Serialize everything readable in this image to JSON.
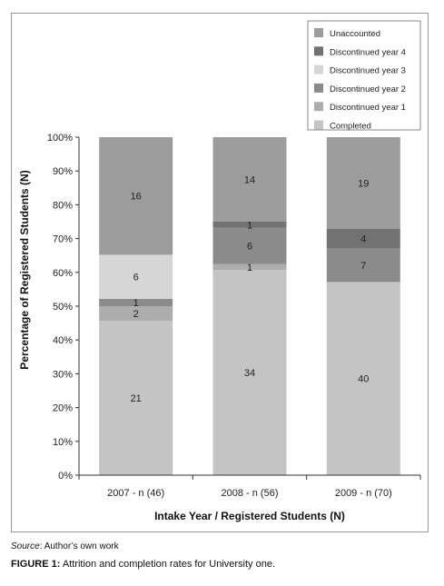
{
  "chart_data": {
    "type": "stacked_bar",
    "categories": [
      "2007 - n (46)",
      "2008 - n (56)",
      "2009 - n (70)"
    ],
    "series": [
      {
        "name": "Completed",
        "color": "#c4c4c4",
        "values": [
          21,
          34,
          40
        ]
      },
      {
        "name": "Discontinued year 1",
        "color": "#adadad",
        "values": [
          2,
          1,
          0
        ]
      },
      {
        "name": "Discontinued year 2",
        "color": "#8b8b8b",
        "values": [
          1,
          6,
          7
        ]
      },
      {
        "name": "Discontinued year 3",
        "color": "#d6d6d6",
        "values": [
          6,
          0,
          0
        ]
      },
      {
        "name": "Discontinued year 4",
        "color": "#727272",
        "values": [
          0,
          1,
          4
        ]
      },
      {
        "name": "Unaccounted",
        "color": "#9c9c9c",
        "values": [
          16,
          14,
          19
        ]
      }
    ],
    "segment_labels": [
      [
        "21",
        "2",
        "1",
        "6",
        "",
        "16"
      ],
      [
        "34",
        "1",
        "6",
        "",
        "1",
        "14"
      ],
      [
        "40",
        "",
        "7",
        "",
        "4",
        "19"
      ]
    ],
    "legend_order": [
      "Unaccounted",
      "Discontinued year 4",
      "Discontinued year 3",
      "Discontinued year 2",
      "Discontinued year 1",
      "Completed"
    ],
    "yticks": [
      "0%",
      "10%",
      "20%",
      "30%",
      "40%",
      "50%",
      "60%",
      "70%",
      "80%",
      "90%",
      "100%"
    ],
    "ylim": [
      0,
      100
    ],
    "ylabel": "Percentage of Registered Students (N)",
    "xlabel": "Intake Year / Registered Students (N)",
    "legend_position": "top-right",
    "grid": false
  },
  "source": {
    "label": "Source",
    "text": ": Author’s own work"
  },
  "caption": {
    "label": "FIGURE 1:",
    "text": " Attrition and completion rates for University one."
  }
}
